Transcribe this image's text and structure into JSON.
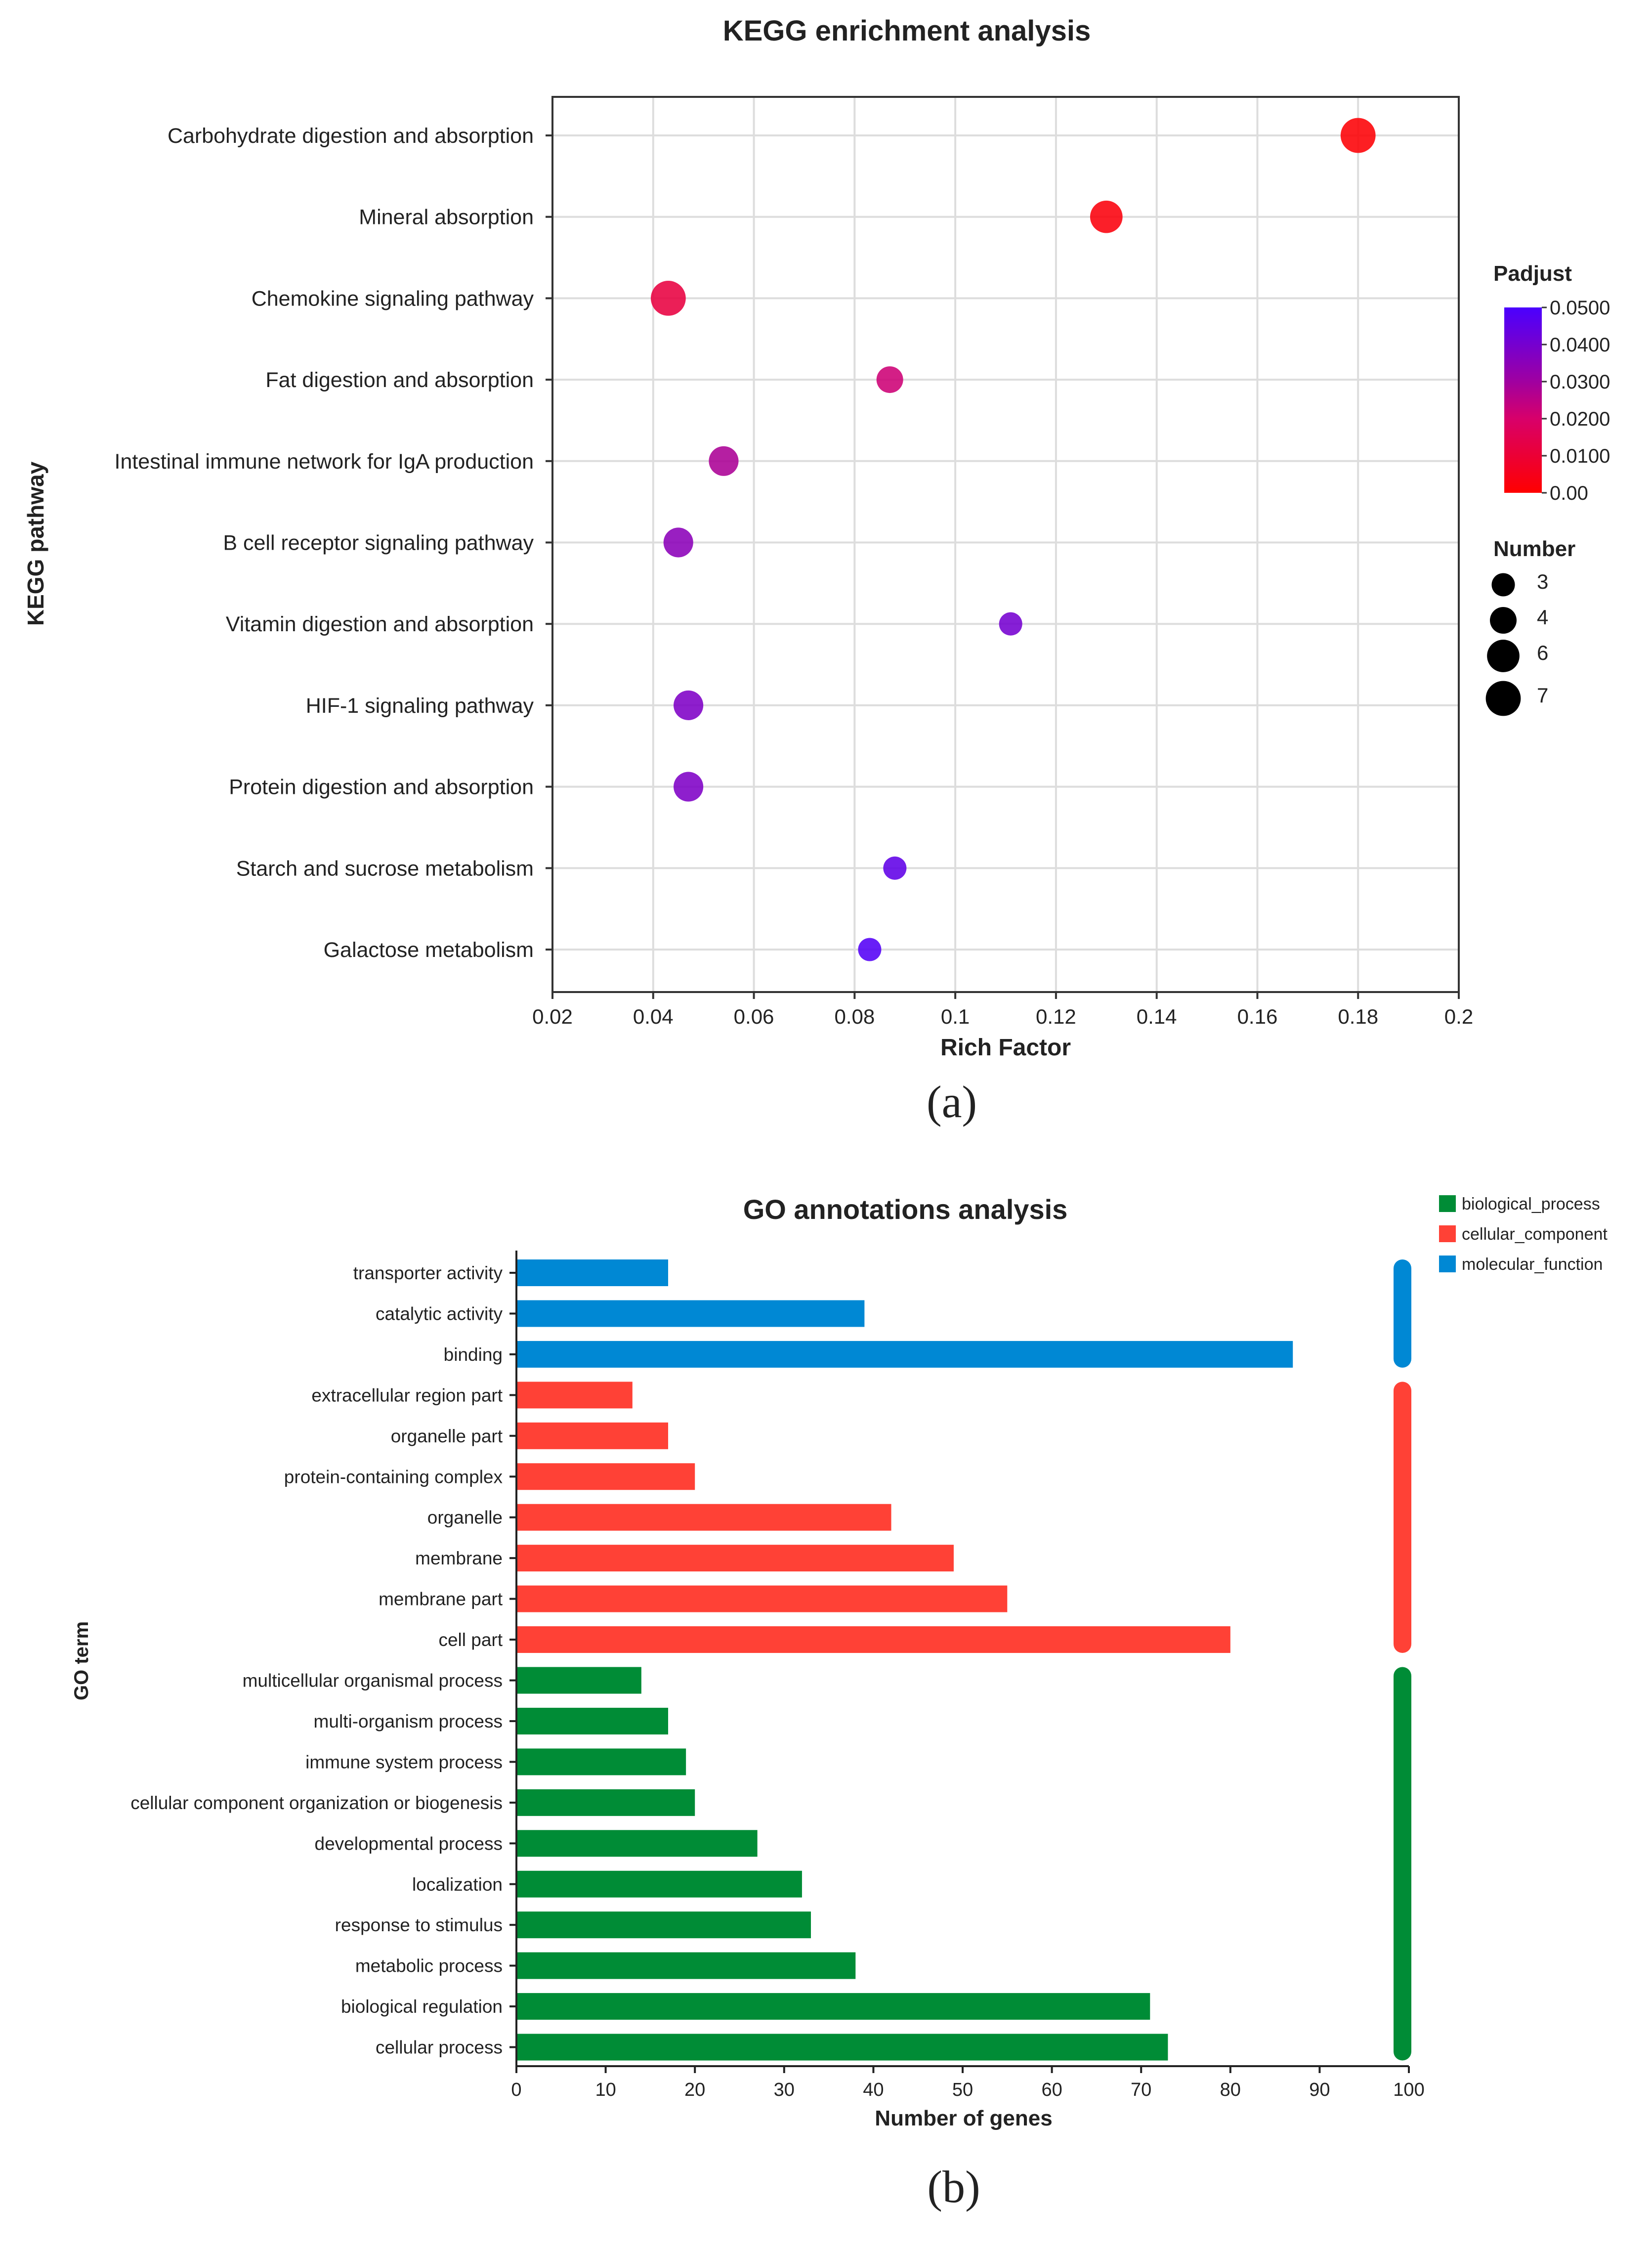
{
  "chart_data": [
    {
      "type": "scatter",
      "title": "KEGG enrichment analysis",
      "xlabel": "Rich Factor",
      "ylabel": "KEGG pathway",
      "panel_label": "(a)",
      "xlim": [
        0.02,
        0.2
      ],
      "xticks": [
        "0.02",
        "0.04",
        "0.06",
        "0.08",
        "0.1",
        "0.12",
        "0.14",
        "0.16",
        "0.18",
        "0.2"
      ],
      "grid": true,
      "categories": [
        "Carbohydrate digestion and absorption",
        "Mineral absorption",
        "Chemokine signaling pathway",
        "Fat digestion and absorption",
        "Intestinal immune network for IgA production",
        "B cell receptor signaling pathway",
        "Vitamin digestion and absorption",
        "HIF-1 signaling pathway",
        "Protein digestion and absorption",
        "Starch and sucrose metabolism",
        "Galactose metabolism"
      ],
      "rich_factor": [
        0.18,
        0.13,
        0.043,
        0.087,
        0.054,
        0.045,
        0.111,
        0.047,
        0.047,
        0.088,
        0.083
      ],
      "number": [
        7,
        6,
        7,
        4,
        5,
        5,
        3,
        5,
        5,
        3,
        3
      ],
      "padjust": [
        0.001,
        0.002,
        0.012,
        0.022,
        0.028,
        0.035,
        0.04,
        0.038,
        0.038,
        0.045,
        0.048
      ],
      "color_legend": {
        "title": "Padjust",
        "ticks": [
          "0.0500",
          "0.0400",
          "0.0300",
          "0.0200",
          "0.0100",
          "0.00"
        ],
        "low_color": "#ff0000",
        "high_color": "#4a00ff"
      },
      "size_legend": {
        "title": "Number",
        "values": [
          "3",
          "4",
          "6",
          "7"
        ]
      },
      "legend_placement": "right"
    },
    {
      "type": "bar",
      "orientation": "horizontal",
      "title": "GO annotations analysis",
      "xlabel": "Number of genes",
      "ylabel": "GO term",
      "panel_label": "(b)",
      "xlim": [
        0,
        100
      ],
      "xticks": [
        "0",
        "10",
        "20",
        "30",
        "40",
        "50",
        "60",
        "70",
        "80",
        "90",
        "100"
      ],
      "categories": [
        "transporter activity",
        "catalytic activity",
        "binding",
        "extracellular region part",
        "organelle part",
        "protein-containing complex",
        "organelle",
        "membrane",
        "membrane part",
        "cell part",
        "multicellular organismal process",
        "multi-organism process",
        "immune system process",
        "cellular component organization or biogenesis",
        "developmental process",
        "localization",
        "response to stimulus",
        "metabolic process",
        "biological regulation",
        "cellular process"
      ],
      "values": [
        17,
        39,
        87,
        13,
        17,
        20,
        42,
        49,
        55,
        80,
        14,
        17,
        19,
        20,
        27,
        32,
        33,
        38,
        71,
        73
      ],
      "groups": [
        "molecular_function",
        "molecular_function",
        "molecular_function",
        "cellular_component",
        "cellular_component",
        "cellular_component",
        "cellular_component",
        "cellular_component",
        "cellular_component",
        "cellular_component",
        "biological_process",
        "biological_process",
        "biological_process",
        "biological_process",
        "biological_process",
        "biological_process",
        "biological_process",
        "biological_process",
        "biological_process",
        "biological_process"
      ],
      "legend": [
        {
          "name": "biological_process",
          "color": "#008c36"
        },
        {
          "name": "cellular_component",
          "color": "#ff4136"
        },
        {
          "name": "molecular_function",
          "color": "#0088d4"
        }
      ],
      "legend_placement": "top-right"
    }
  ]
}
